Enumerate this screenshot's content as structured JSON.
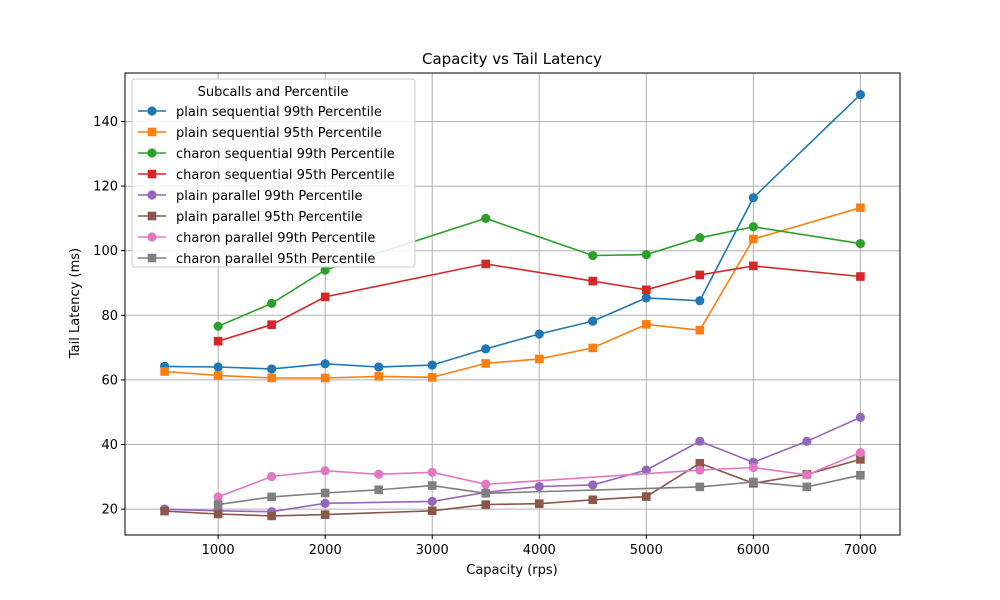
{
  "chart_data": {
    "type": "line",
    "title": "Capacity vs Tail Latency",
    "xlabel": "Capacity (rps)",
    "ylabel": "Tail Latency (ms)",
    "xlim": [
      130,
      7370
    ],
    "ylim": [
      12,
      155
    ],
    "xticks": [
      1000,
      2000,
      3000,
      4000,
      5000,
      6000,
      7000
    ],
    "yticks": [
      20,
      40,
      60,
      80,
      100,
      120,
      140
    ],
    "grid": true,
    "legend": {
      "title": "Subcalls and Percentile",
      "position": "top-left"
    },
    "series": [
      {
        "name": "plain sequential 99th Percentile",
        "color": "#1f77b4",
        "marker": "circle",
        "x": [
          500,
          1000,
          1500,
          2000,
          2500,
          3000,
          3500,
          4000,
          4500,
          5000,
          5500,
          6000,
          7000
        ],
        "y": [
          64.2,
          64.0,
          63.4,
          65.0,
          64.0,
          64.6,
          69.6,
          74.2,
          78.2,
          85.4,
          84.5,
          116.4,
          148.3
        ]
      },
      {
        "name": "plain sequential 95th Percentile",
        "color": "#ff7f0e",
        "marker": "square",
        "x": [
          500,
          1000,
          1500,
          2000,
          2500,
          3000,
          3500,
          4000,
          4500,
          5000,
          5500,
          6000,
          7000
        ],
        "y": [
          62.6,
          61.4,
          60.6,
          60.6,
          61.1,
          60.8,
          65.1,
          66.5,
          69.9,
          77.2,
          75.4,
          103.6,
          113.3
        ]
      },
      {
        "name": "charon sequential 99th Percentile",
        "color": "#2ca02c",
        "marker": "circle",
        "x": [
          1000,
          1500,
          2000,
          3500,
          4500,
          5000,
          5500,
          6000,
          7000
        ],
        "y": [
          76.6,
          83.7,
          94.0,
          110.0,
          98.5,
          98.8,
          104.0,
          107.4,
          102.2
        ]
      },
      {
        "name": "charon sequential 95th Percentile",
        "color": "#d62728",
        "marker": "square",
        "x": [
          1000,
          1500,
          2000,
          3500,
          4500,
          5000,
          5500,
          6000,
          7000
        ],
        "y": [
          72.0,
          77.1,
          85.7,
          95.9,
          90.6,
          87.9,
          92.5,
          95.3,
          92.0
        ]
      },
      {
        "name": "plain parallel 99th Percentile",
        "color": "#9467bd",
        "marker": "circle",
        "x": [
          500,
          1000,
          1500,
          2000,
          3000,
          3500,
          4000,
          4500,
          5000,
          5500,
          6000,
          6500,
          7000
        ],
        "y": [
          20.0,
          19.5,
          19.2,
          21.8,
          22.4,
          25.2,
          27.0,
          27.5,
          32.1,
          41.0,
          34.5,
          41.0,
          48.4
        ]
      },
      {
        "name": "plain parallel 95th Percentile",
        "color": "#8c564b",
        "marker": "square",
        "x": [
          500,
          1000,
          1500,
          2000,
          3000,
          3500,
          4000,
          4500,
          5000,
          5500,
          6000,
          6500,
          7000
        ],
        "y": [
          19.4,
          18.5,
          17.9,
          18.3,
          19.5,
          21.4,
          21.7,
          22.9,
          23.9,
          34.2,
          28.0,
          30.8,
          35.4
        ]
      },
      {
        "name": "charon parallel 99th Percentile",
        "color": "#e377c2",
        "marker": "circle",
        "x": [
          1000,
          1500,
          2000,
          2500,
          3000,
          3500,
          5500,
          6000,
          6500,
          7000
        ],
        "y": [
          23.8,
          30.1,
          31.9,
          30.8,
          31.4,
          27.7,
          32.1,
          32.9,
          30.6,
          37.5
        ]
      },
      {
        "name": "charon parallel 95th Percentile",
        "color": "#7f7f7f",
        "marker": "square",
        "x": [
          1000,
          1500,
          2000,
          2500,
          3000,
          3500,
          5500,
          6000,
          6500,
          7000
        ],
        "y": [
          21.4,
          23.8,
          25.0,
          26.0,
          27.3,
          24.9,
          26.9,
          28.4,
          26.9,
          30.5
        ]
      }
    ]
  }
}
